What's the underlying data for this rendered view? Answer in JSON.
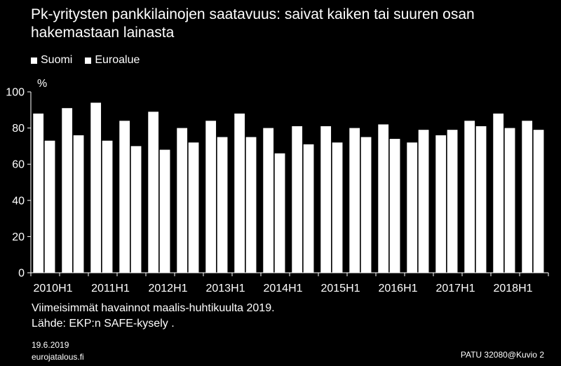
{
  "colors": {
    "background": "#000000",
    "series_a": "#ffffff",
    "series_b": "#ffffff",
    "axis": "#ffffff"
  },
  "header": {
    "title": "Pk-yritysten pankkilainojen saatavuus: saivat kaiken tai suuren osan hakemastaan lainasta"
  },
  "footer": {
    "note1": "Viimeisimmät havainnot maalis-huhtikuulta 2019.",
    "note2": "Lähde: EKP:n SAFE-kysely .",
    "date": "19.6.2019",
    "site": "eurojatalous.fi",
    "code": "PATU 32080@Kuvio 2"
  },
  "chart_data": {
    "type": "bar",
    "title": "Pk-yritysten pankkilainojen saatavuus: saivat kaiken tai suuren osan hakemastaan lainasta",
    "ylabel": "%",
    "xlabel": "",
    "ylim": [
      0,
      100
    ],
    "yticks": [
      0,
      20,
      40,
      60,
      80,
      100
    ],
    "legend_position": "top-left",
    "categories": [
      "2010H1",
      "2010H2",
      "2011H1",
      "2011H2",
      "2012H1",
      "2012H2",
      "2013H1",
      "2013H2",
      "2014H1",
      "2014H2",
      "2015H1",
      "2015H2",
      "2016H1",
      "2016H2",
      "2017H1",
      "2017H2",
      "2018H1",
      "2018H2"
    ],
    "xtick_labels": [
      "2010H1",
      "2011H1",
      "2012H1",
      "2013H1",
      "2014H1",
      "2015H1",
      "2016H1",
      "2017H1",
      "2018H1"
    ],
    "series": [
      {
        "name": "Suomi",
        "values": [
          88,
          91,
          94,
          84,
          89,
          80,
          84,
          88,
          80,
          81,
          81,
          80,
          82,
          72,
          76,
          84,
          88,
          84
        ]
      },
      {
        "name": "Euroalue",
        "values": [
          73,
          76,
          73,
          70,
          68,
          72,
          75,
          75,
          66,
          71,
          72,
          75,
          74,
          79,
          79,
          81,
          80,
          79
        ]
      }
    ]
  }
}
